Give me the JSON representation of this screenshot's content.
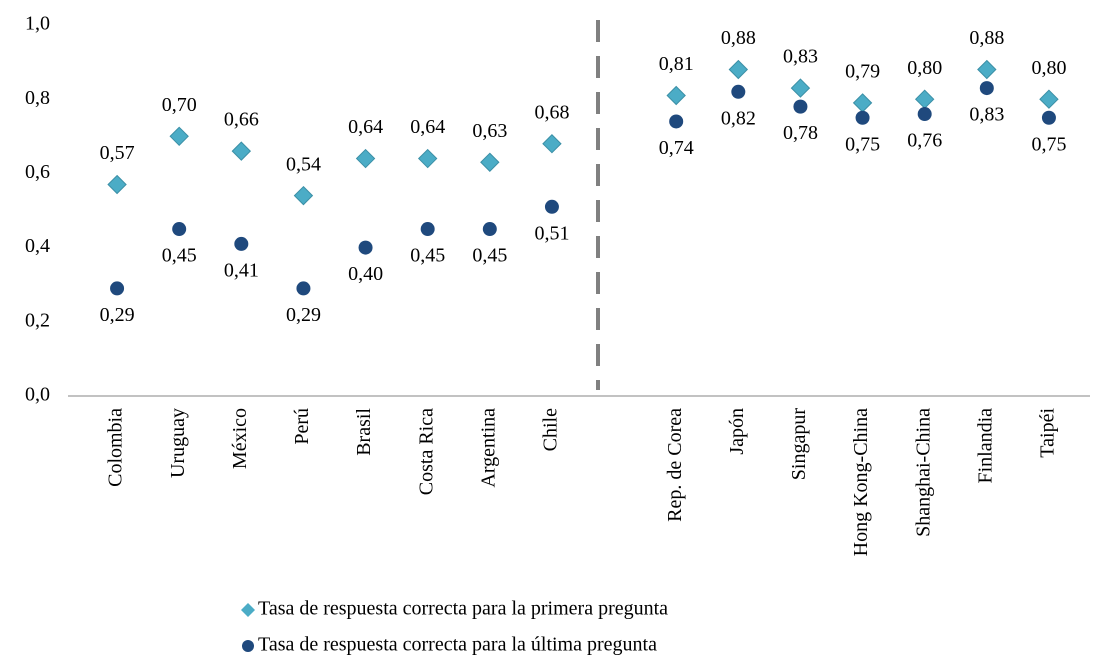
{
  "chart_data": {
    "type": "scatter",
    "categories": [
      "Colombia",
      "Uruguay",
      "México",
      "Perú",
      "Brasil",
      "Costa Rica",
      "Argentina",
      "Chile",
      null,
      "Rep. de Corea",
      "Japón",
      "Singapur",
      "Hong Kong-China",
      "Shanghai-China",
      "Finlandia",
      "Taipéi"
    ],
    "series": [
      {
        "name": "Tasa de respuesta correcta para la primera pregunta",
        "color": "#4bacc6",
        "marker": "diamond",
        "values": [
          0.57,
          0.7,
          0.66,
          0.54,
          0.64,
          0.64,
          0.63,
          0.68,
          null,
          0.81,
          0.88,
          0.83,
          0.79,
          0.8,
          0.88,
          0.8
        ],
        "value_labels": [
          "0,57",
          "0,70",
          "0,66",
          "0,54",
          "0,64",
          "0,64",
          "0,63",
          "0,68",
          null,
          "0,81",
          "0,88",
          "0,83",
          "0,79",
          "0,80",
          "0,88",
          "0,80"
        ]
      },
      {
        "name": "Tasa de respuesta correcta para la última pregunta",
        "color": "#1f497d",
        "marker": "circle",
        "values": [
          0.29,
          0.45,
          0.41,
          0.29,
          0.4,
          0.45,
          0.45,
          0.51,
          null,
          0.74,
          0.82,
          0.78,
          0.75,
          0.76,
          0.83,
          0.75
        ],
        "value_labels": [
          "0,29",
          "0,45",
          "0,41",
          "0,29",
          "0,40",
          "0,45",
          "0,45",
          "0,51",
          null,
          "0,74",
          "0,82",
          "0,78",
          "0,75",
          "0,76",
          "0,83",
          "0,75"
        ]
      }
    ],
    "ylim": [
      0,
      1
    ],
    "yticks": [
      {
        "value": 0,
        "label": "0,0"
      },
      {
        "value": 0.2,
        "label": "0,2"
      },
      {
        "value": 0.4,
        "label": "0,4"
      },
      {
        "value": 0.6,
        "label": "0,6"
      },
      {
        "value": 0.8,
        "label": "0,8"
      },
      {
        "value": 1,
        "label": "1,0"
      }
    ],
    "grid": false
  }
}
